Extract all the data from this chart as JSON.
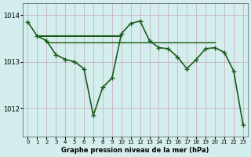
{
  "hours": [
    0,
    1,
    2,
    3,
    4,
    5,
    6,
    7,
    8,
    9,
    10,
    11,
    12,
    13,
    14,
    15,
    16,
    17,
    18,
    19,
    20,
    21,
    22,
    23
  ],
  "pressure_curve": [
    1013.85,
    1013.55,
    1013.45,
    1013.15,
    1013.05,
    1013.0,
    1012.85,
    1011.85,
    1012.45,
    1012.65,
    1013.6,
    1013.82,
    1013.87,
    1013.45,
    1013.3,
    1013.28,
    1013.1,
    1012.85,
    1013.05,
    1013.28,
    1013.3,
    1013.2,
    1012.8,
    1011.65
  ],
  "flat_line1_x": [
    1,
    10
  ],
  "flat_line1_y": [
    1013.55,
    1013.55
  ],
  "flat_line2_x": [
    2,
    20
  ],
  "flat_line2_y": [
    1013.42,
    1013.42
  ],
  "bg_color": "#d4eeee",
  "grid_color": "#c4aab8",
  "line_color": "#1a5c1a",
  "xlabel": "Graphe pression niveau de la mer (hPa)",
  "yticks": [
    1012,
    1013,
    1014
  ],
  "xticks": [
    0,
    1,
    2,
    3,
    4,
    5,
    6,
    7,
    8,
    9,
    10,
    11,
    12,
    13,
    14,
    15,
    16,
    17,
    18,
    19,
    20,
    21,
    22,
    23
  ],
  "ylim": [
    1011.4,
    1014.25
  ],
  "xlim": [
    -0.5,
    23.5
  ],
  "marker": "+",
  "markersize": 4,
  "linewidth": 1.2
}
